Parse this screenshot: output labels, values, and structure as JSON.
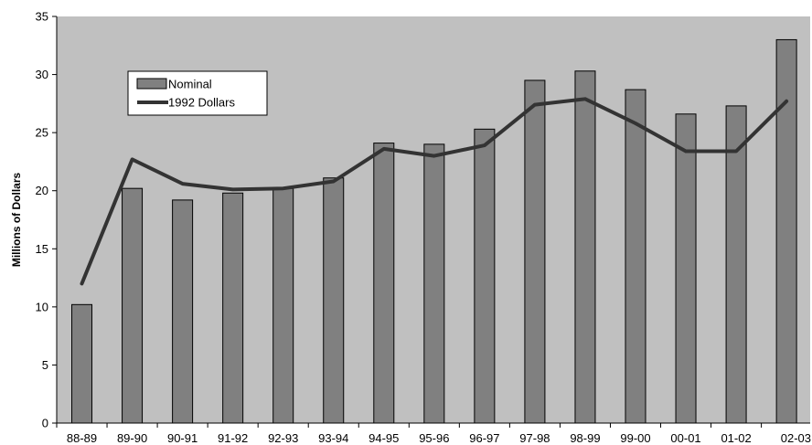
{
  "chart_data": {
    "type": "bar",
    "title": "",
    "xlabel": "",
    "ylabel": "Millions of Dollars",
    "ylim": [
      0,
      35
    ],
    "y_ticks": [
      0,
      5,
      10,
      15,
      20,
      25,
      30,
      35
    ],
    "grid": false,
    "legend_position": "top-left",
    "categories": [
      "88-89",
      "89-90",
      "90-91",
      "91-92",
      "92-93",
      "93-94",
      "94-95",
      "95-96",
      "96-97",
      "97-98",
      "98-99",
      "99-00",
      "00-01",
      "01-02",
      "02-03"
    ],
    "series": [
      {
        "name": "Nominal",
        "type": "bar",
        "color": "#808080",
        "values": [
          10.2,
          20.2,
          19.2,
          19.8,
          20.2,
          21.1,
          24.1,
          24.0,
          25.3,
          29.5,
          30.3,
          28.7,
          26.6,
          27.3,
          33.0
        ]
      },
      {
        "name": "1992 Dollars",
        "type": "line",
        "color": "#333333",
        "values": [
          12.0,
          22.7,
          20.6,
          20.1,
          20.2,
          20.8,
          23.6,
          23.0,
          23.9,
          27.4,
          27.9,
          25.8,
          23.4,
          23.4,
          27.7
        ]
      }
    ],
    "colors": {
      "plot_background": "#c0c0c0",
      "bar_stroke": "#000000"
    }
  }
}
